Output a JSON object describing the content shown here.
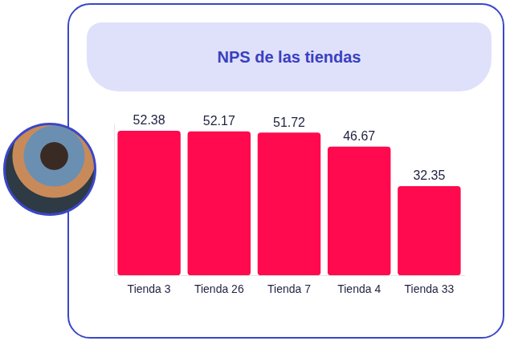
{
  "chart_data": {
    "type": "bar",
    "title": "NPS de las tiendas",
    "categories": [
      "Tienda 3",
      "Tienda 26",
      "Tienda 7",
      "Tienda 4",
      "Tienda 33"
    ],
    "values": [
      52.38,
      52.17,
      51.72,
      46.67,
      32.35
    ],
    "color": "#ff0a4e",
    "ylim": [
      0,
      55
    ],
    "grid": false,
    "data_labels": true,
    "tick_labels": "x"
  }
}
